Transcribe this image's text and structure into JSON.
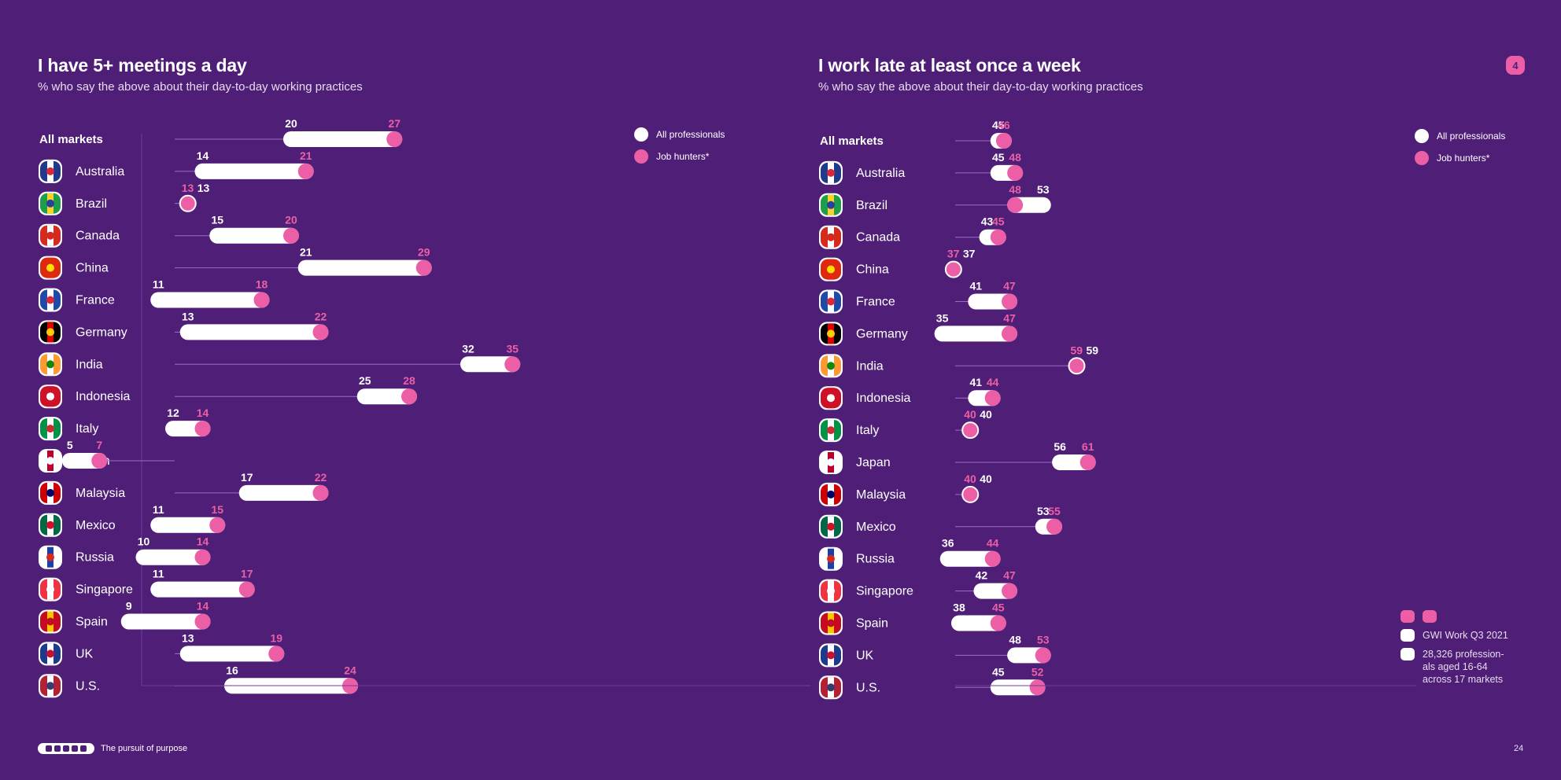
{
  "page": {
    "badge": "4",
    "number": "24",
    "footer_text": "The pursuit of purpose"
  },
  "colors": {
    "background": "#4f1f78",
    "all": "#ffffff",
    "hunters": "#ec5fa6",
    "line": "#9b6cc6"
  },
  "legend": {
    "all_label": "All professionals",
    "hunters_label": "Job hunters*"
  },
  "source": {
    "line1": "GWI Work Q3 2021",
    "line2": "28,326 profession-",
    "line3": "als aged 16-64",
    "line4": "across 17 markets"
  },
  "chart_data": [
    {
      "type": "dumbbell",
      "title": "I have 5+ meetings a day",
      "subtitle": "% who say the above about their day-to-day working practices",
      "categories": [
        "All markets",
        "Australia",
        "Brazil",
        "Canada",
        "China",
        "France",
        "Germany",
        "India",
        "Indonesia",
        "Italy",
        "Japan",
        "Malaysia",
        "Mexico",
        "Russia",
        "Singapore",
        "Spain",
        "UK",
        "U.S."
      ],
      "series": [
        {
          "name": "All professionals",
          "values": [
            20,
            14,
            13,
            15,
            21,
            11,
            13,
            32,
            25,
            12,
            5,
            17,
            11,
            10,
            11,
            9,
            13,
            16
          ]
        },
        {
          "name": "Job hunters*",
          "values": [
            27,
            21,
            13,
            20,
            29,
            18,
            22,
            35,
            28,
            14,
            7,
            22,
            15,
            14,
            17,
            14,
            19,
            24
          ]
        }
      ]
    },
    {
      "type": "dumbbell",
      "title": "I work late at least once a week",
      "subtitle": "% who say the above about their day-to-day working practices",
      "categories": [
        "All markets",
        "Australia",
        "Brazil",
        "Canada",
        "China",
        "France",
        "Germany",
        "India",
        "Indonesia",
        "Italy",
        "Japan",
        "Malaysia",
        "Mexico",
        "Russia",
        "Singapore",
        "Spain",
        "UK",
        "U.S."
      ],
      "series": [
        {
          "name": "All professionals",
          "values": [
            45,
            45,
            53,
            43,
            37,
            41,
            35,
            59,
            41,
            40,
            56,
            40,
            53,
            36,
            42,
            38,
            48,
            45
          ]
        },
        {
          "name": "Job hunters*",
          "values": [
            46,
            48,
            48,
            45,
            37,
            47,
            47,
            59,
            44,
            40,
            61,
            40,
            55,
            44,
            47,
            45,
            53,
            52
          ]
        }
      ]
    }
  ]
}
